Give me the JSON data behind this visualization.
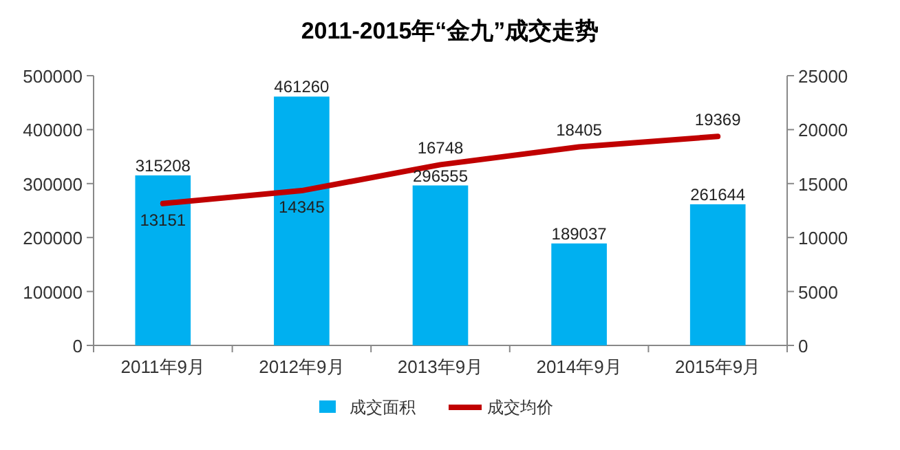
{
  "chart_data": {
    "type": "bar",
    "title": "2011-2015年“金九”成交走势",
    "categories": [
      "2011年9月",
      "2012年9月",
      "2013年9月",
      "2014年9月",
      "2015年9月"
    ],
    "series": [
      {
        "name": "成交面积",
        "color": "#00b0f0",
        "values": [
          315208,
          461260,
          296555,
          189037,
          261644
        ]
      },
      {
        "name": "成交均价",
        "type": "line",
        "axis": "y2",
        "color": "#c00000",
        "values": [
          13151,
          14345,
          16748,
          18405,
          19369
        ]
      }
    ],
    "ylim": [
      0,
      500000
    ],
    "yticks": [
      0,
      100000,
      200000,
      300000,
      400000,
      500000
    ],
    "y2lim": [
      0,
      25000
    ],
    "y2ticks": [
      0,
      5000,
      10000,
      15000,
      20000,
      25000
    ],
    "data_labels": true,
    "legend": "bottom"
  }
}
